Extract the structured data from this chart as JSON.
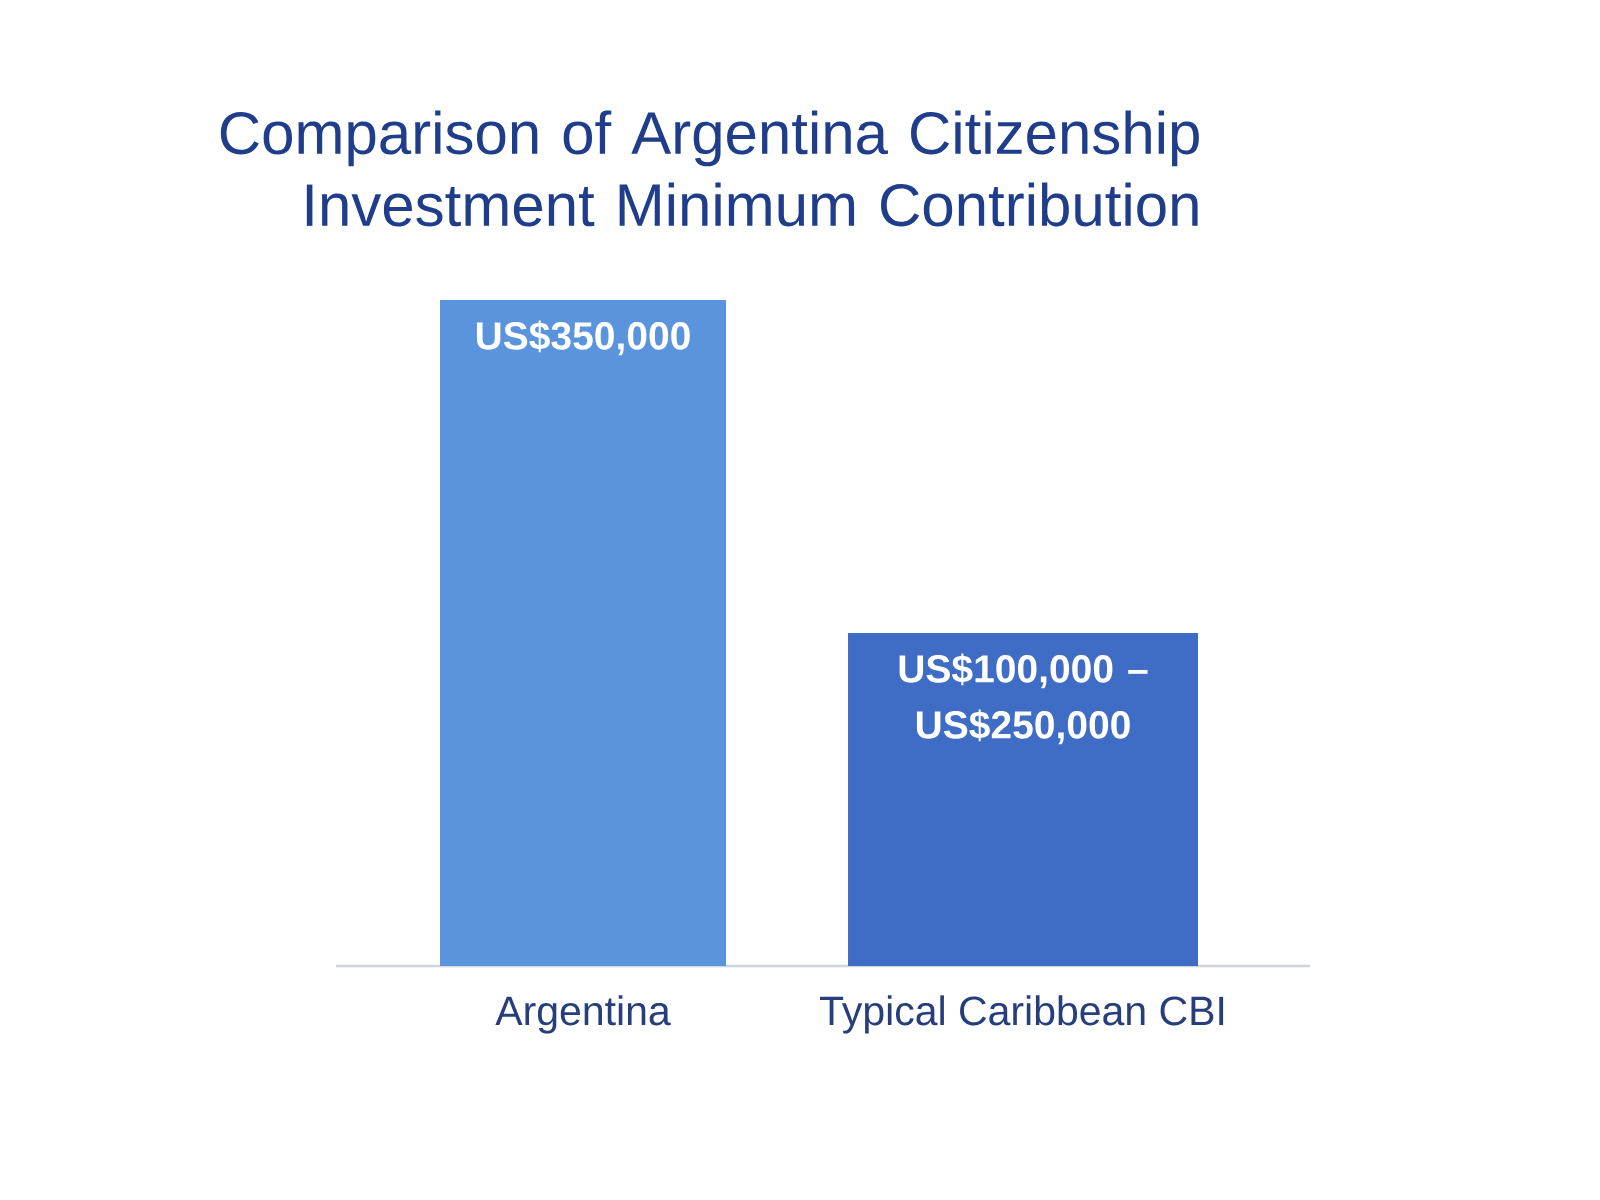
{
  "chart_data": {
    "type": "bar",
    "title": "Comparison of Argentina Citizenship Investment Minimum Contribution",
    "categories": [
      "Argentina",
      "Typical Caribbean CBI"
    ],
    "values": [
      350000,
      175000
    ],
    "colors": [
      "#5a94dd",
      "#3f6dc6"
    ],
    "value_labels": [
      "US$350,000",
      "US$100,000 – US$250,000"
    ]
  }
}
